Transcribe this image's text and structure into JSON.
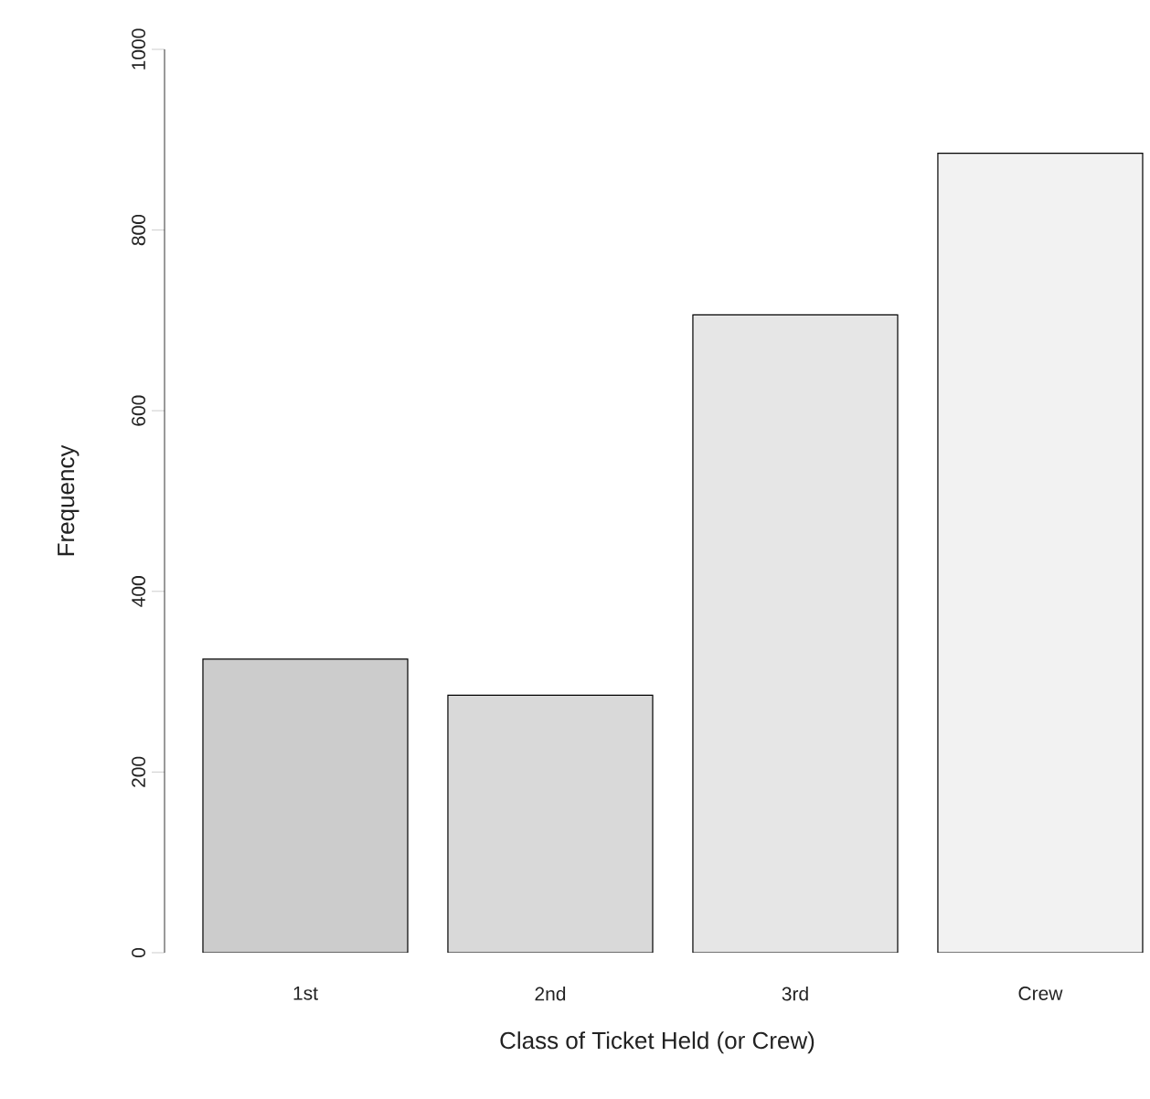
{
  "chart_data": {
    "type": "bar",
    "xlabel": "Class of Ticket Held (or Crew)",
    "ylabel": "Frequency",
    "categories": [
      "1st",
      "2nd",
      "3rd",
      "Crew"
    ],
    "values": [
      325,
      285,
      706,
      885
    ],
    "colors": [
      "#cccccc",
      "#d9d9d9",
      "#e6e6e6",
      "#f2f2f2"
    ],
    "ylim": [
      0,
      1000
    ],
    "yticks": [
      0,
      200,
      400,
      600,
      800,
      1000
    ],
    "grid": false
  }
}
